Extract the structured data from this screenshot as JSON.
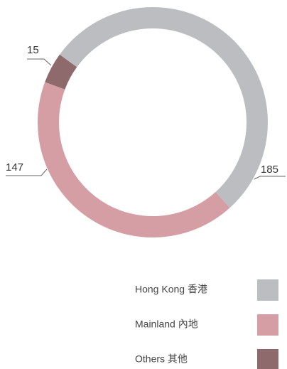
{
  "chart_data": {
    "type": "donut",
    "categories": [
      "Hong Kong 香港",
      "Mainland 內地",
      "Others 其他"
    ],
    "values": [
      185,
      147,
      15
    ],
    "colors": [
      "#bcbdc0",
      "#d59ea4",
      "#8e6a6c"
    ]
  }
}
